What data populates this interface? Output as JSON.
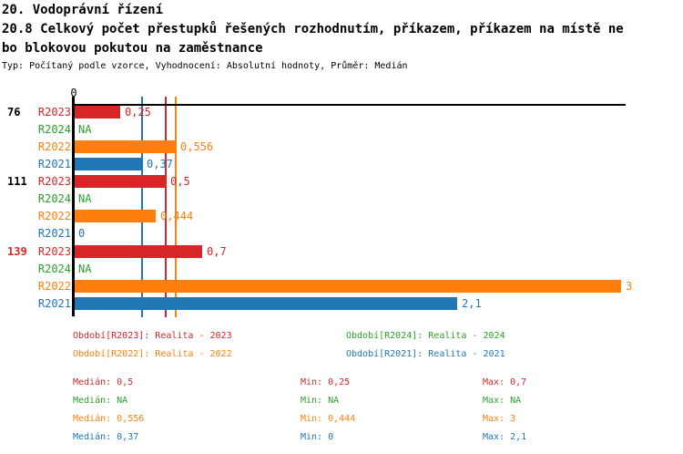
{
  "colors": {
    "red": "#d62728",
    "green": "#2ca02c",
    "orange": "#ff7f0e",
    "blue": "#1f77b4",
    "black": "#000000"
  },
  "header": {
    "title": "20. Vodoprávní řízení",
    "subtitle_line1": "20.8 Celkový počet přestupků řešených rozhodnutím, příkazem, příkazem na místě ne",
    "subtitle_line2": "bo blokovou pokutou na zaměstnance",
    "meta": "Typ: Počítaný podle vzorce, Vyhodnocení: Absolutní hodnoty, Průměr: Medián"
  },
  "chart_data": {
    "type": "bar",
    "orientation": "horizontal",
    "value_range": [
      0,
      3
    ],
    "axis": {
      "origin_tick_label": "0"
    },
    "series": [
      {
        "id": "R2023",
        "color": "#d62728",
        "name": "Realita - 2023"
      },
      {
        "id": "R2024",
        "color": "#2ca02c",
        "name": "Realita - 2024"
      },
      {
        "id": "R2022",
        "color": "#ff7f0e",
        "name": "Realita - 2022"
      },
      {
        "id": "R2021",
        "color": "#1f77b4",
        "name": "Realita - 2021"
      }
    ],
    "groups": [
      {
        "label": "76",
        "label_color": "#000000",
        "bars": [
          {
            "series": "R2023",
            "value": 0.25,
            "label": "0,25"
          },
          {
            "series": "R2024",
            "value": null,
            "label": "NA"
          },
          {
            "series": "R2022",
            "value": 0.556,
            "label": "0,556"
          },
          {
            "series": "R2021",
            "value": 0.37,
            "label": "0,37"
          }
        ]
      },
      {
        "label": "111",
        "label_color": "#000000",
        "bars": [
          {
            "series": "R2023",
            "value": 0.5,
            "label": "0,5"
          },
          {
            "series": "R2024",
            "value": null,
            "label": "NA"
          },
          {
            "series": "R2022",
            "value": 0.444,
            "label": "0,444"
          },
          {
            "series": "R2021",
            "value": 0,
            "label": "0"
          }
        ]
      },
      {
        "label": "139",
        "label_color": "#d62728",
        "bars": [
          {
            "series": "R2023",
            "value": 0.7,
            "label": "0,7"
          },
          {
            "series": "R2024",
            "value": null,
            "label": "NA"
          },
          {
            "series": "R2022",
            "value": 3,
            "label": "3"
          },
          {
            "series": "R2021",
            "value": 2.1,
            "label": "2,1"
          }
        ]
      }
    ],
    "median_lines": [
      {
        "series": "R2021",
        "value": 0.37
      },
      {
        "series": "R2023",
        "value": 0.5
      },
      {
        "series": "R2022",
        "value": 0.556
      }
    ]
  },
  "legend": {
    "items": [
      {
        "series": "R2023",
        "text": "Období[R2023]: Realita - 2023"
      },
      {
        "series": "R2024",
        "text": "Období[R2024]: Realita - 2024"
      },
      {
        "series": "R2022",
        "text": "Období[R2022]: Realita - 2022"
      },
      {
        "series": "R2021",
        "text": "Období[R2021]: Realita - 2021"
      }
    ]
  },
  "stats": {
    "rows": [
      {
        "series": "R2023",
        "cells": [
          "Medián: 0,5",
          "Min: 0,25",
          "Max: 0,7"
        ]
      },
      {
        "series": "R2024",
        "cells": [
          "Medián: NA",
          "Min: NA",
          "Max: NA"
        ]
      },
      {
        "series": "R2022",
        "cells": [
          "Medián: 0,556",
          "Min: 0,444",
          "Max: 3"
        ]
      },
      {
        "series": "R2021",
        "cells": [
          "Medián: 0,37",
          "Min: 0",
          "Max: 2,1"
        ]
      }
    ]
  }
}
